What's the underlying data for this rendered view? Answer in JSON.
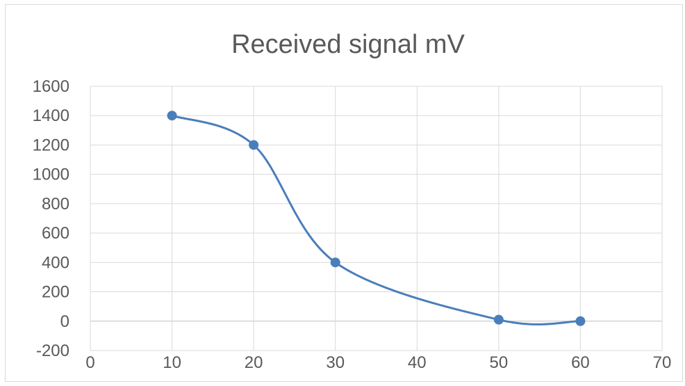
{
  "chart_data": {
    "type": "scatter",
    "title": "Received signal mV",
    "xlabel": "",
    "ylabel": "",
    "xlim": [
      0,
      70
    ],
    "ylim": [
      -200,
      1600
    ],
    "x_ticks": [
      0,
      10,
      20,
      30,
      40,
      50,
      60,
      70
    ],
    "y_ticks": [
      -200,
      0,
      200,
      400,
      600,
      800,
      1000,
      1200,
      1400,
      1600
    ],
    "grid": true,
    "smooth_line": true,
    "markers": true,
    "series": [
      {
        "x": [
          10,
          20,
          30,
          50,
          60
        ],
        "y": [
          1400,
          1200,
          400,
          10,
          0
        ],
        "color": "#4a7ebb"
      }
    ]
  }
}
